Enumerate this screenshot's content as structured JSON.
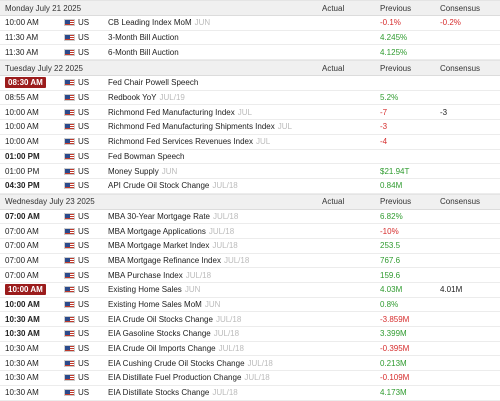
{
  "columns": {
    "actual": "Actual",
    "previous": "Previous",
    "consensus": "Consensus"
  },
  "days": [
    {
      "date": "Monday July 21 2025",
      "events": [
        {
          "time": "10:00 AM",
          "time_style": "normal",
          "country": "US",
          "event": "CB Leading Index MoM",
          "period": "JUN",
          "actual": "",
          "previous": "-0.1%",
          "previous_color": "red",
          "consensus": "-0.2%",
          "consensus_color": "red"
        },
        {
          "time": "11:30 AM",
          "time_style": "normal",
          "country": "US",
          "event": "3-Month Bill Auction",
          "period": "",
          "actual": "",
          "previous": "4.245%",
          "previous_color": "green",
          "consensus": "",
          "consensus_color": "normal"
        },
        {
          "time": "11:30 AM",
          "time_style": "normal",
          "country": "US",
          "event": "6-Month Bill Auction",
          "period": "",
          "actual": "",
          "previous": "4.125%",
          "previous_color": "green",
          "consensus": "",
          "consensus_color": "normal"
        }
      ]
    },
    {
      "date": "Tuesday July 22 2025",
      "events": [
        {
          "time": "08:30 AM",
          "time_style": "badge",
          "country": "US",
          "event": "Fed Chair Powell Speech",
          "period": "",
          "actual": "",
          "previous": "",
          "previous_color": "normal",
          "consensus": "",
          "consensus_color": "normal"
        },
        {
          "time": "08:55 AM",
          "time_style": "normal",
          "country": "US",
          "event": "Redbook YoY",
          "period": "JUL/19",
          "actual": "",
          "previous": "5.2%",
          "previous_color": "green",
          "consensus": "",
          "consensus_color": "normal"
        },
        {
          "time": "10:00 AM",
          "time_style": "normal",
          "country": "US",
          "event": "Richmond Fed Manufacturing Index",
          "period": "JUL",
          "actual": "",
          "previous": "-7",
          "previous_color": "red",
          "consensus": "-3",
          "consensus_color": "normal"
        },
        {
          "time": "10:00 AM",
          "time_style": "normal",
          "country": "US",
          "event": "Richmond Fed Manufacturing Shipments Index",
          "period": "JUL",
          "actual": "",
          "previous": "-3",
          "previous_color": "red",
          "consensus": "",
          "consensus_color": "normal"
        },
        {
          "time": "10:00 AM",
          "time_style": "normal",
          "country": "US",
          "event": "Richmond Fed Services Revenues Index",
          "period": "JUL",
          "actual": "",
          "previous": "-4",
          "previous_color": "red",
          "consensus": "",
          "consensus_color": "normal"
        },
        {
          "time": "01:00 PM",
          "time_style": "bold",
          "country": "US",
          "event": "Fed Bowman Speech",
          "period": "",
          "actual": "",
          "previous": "",
          "previous_color": "normal",
          "consensus": "",
          "consensus_color": "normal"
        },
        {
          "time": "01:00 PM",
          "time_style": "normal",
          "country": "US",
          "event": "Money Supply",
          "period": "JUN",
          "actual": "",
          "previous": "$21.94T",
          "previous_color": "green",
          "consensus": "",
          "consensus_color": "normal"
        },
        {
          "time": "04:30 PM",
          "time_style": "bold",
          "country": "US",
          "event": "API Crude Oil Stock Change",
          "period": "JUL/18",
          "actual": "",
          "previous": "0.84M",
          "previous_color": "green",
          "consensus": "",
          "consensus_color": "normal"
        }
      ]
    },
    {
      "date": "Wednesday July 23 2025",
      "events": [
        {
          "time": "07:00 AM",
          "time_style": "bold",
          "country": "US",
          "event": "MBA 30-Year Mortgage Rate",
          "period": "JUL/18",
          "actual": "",
          "previous": "6.82%",
          "previous_color": "green",
          "consensus": "",
          "consensus_color": "normal"
        },
        {
          "time": "07:00 AM",
          "time_style": "normal",
          "country": "US",
          "event": "MBA Mortgage Applications",
          "period": "JUL/18",
          "actual": "",
          "previous": "-10%",
          "previous_color": "red",
          "consensus": "",
          "consensus_color": "normal"
        },
        {
          "time": "07:00 AM",
          "time_style": "normal",
          "country": "US",
          "event": "MBA Mortgage Market Index",
          "period": "JUL/18",
          "actual": "",
          "previous": "253.5",
          "previous_color": "green",
          "consensus": "",
          "consensus_color": "normal"
        },
        {
          "time": "07:00 AM",
          "time_style": "normal",
          "country": "US",
          "event": "MBA Mortgage Refinance Index",
          "period": "JUL/18",
          "actual": "",
          "previous": "767.6",
          "previous_color": "green",
          "consensus": "",
          "consensus_color": "normal"
        },
        {
          "time": "07:00 AM",
          "time_style": "normal",
          "country": "US",
          "event": "MBA Purchase Index",
          "period": "JUL/18",
          "actual": "",
          "previous": "159.6",
          "previous_color": "green",
          "consensus": "",
          "consensus_color": "normal"
        },
        {
          "time": "10:00 AM",
          "time_style": "badge",
          "country": "US",
          "event": "Existing Home Sales",
          "period": "JUN",
          "actual": "",
          "previous": "4.03M",
          "previous_color": "green",
          "consensus": "4.01M",
          "consensus_color": "normal"
        },
        {
          "time": "10:00 AM",
          "time_style": "bold",
          "country": "US",
          "event": "Existing Home Sales MoM",
          "period": "JUN",
          "actual": "",
          "previous": "0.8%",
          "previous_color": "green",
          "consensus": "",
          "consensus_color": "normal"
        },
        {
          "time": "10:30 AM",
          "time_style": "bold",
          "country": "US",
          "event": "EIA Crude Oil Stocks Change",
          "period": "JUL/18",
          "actual": "",
          "previous": "-3.859M",
          "previous_color": "red",
          "consensus": "",
          "consensus_color": "normal"
        },
        {
          "time": "10:30 AM",
          "time_style": "bold",
          "country": "US",
          "event": "EIA Gasoline Stocks Change",
          "period": "JUL/18",
          "actual": "",
          "previous": "3.399M",
          "previous_color": "green",
          "consensus": "",
          "consensus_color": "normal"
        },
        {
          "time": "10:30 AM",
          "time_style": "normal",
          "country": "US",
          "event": "EIA Crude Oil Imports Change",
          "period": "JUL/18",
          "actual": "",
          "previous": "-0.395M",
          "previous_color": "red",
          "consensus": "",
          "consensus_color": "normal"
        },
        {
          "time": "10:30 AM",
          "time_style": "normal",
          "country": "US",
          "event": "EIA Cushing Crude Oil Stocks Change",
          "period": "JUL/18",
          "actual": "",
          "previous": "0.213M",
          "previous_color": "green",
          "consensus": "",
          "consensus_color": "normal"
        },
        {
          "time": "10:30 AM",
          "time_style": "normal",
          "country": "US",
          "event": "EIA Distillate Fuel Production Change",
          "period": "JUL/18",
          "actual": "",
          "previous": "-0.109M",
          "previous_color": "red",
          "consensus": "",
          "consensus_color": "normal"
        },
        {
          "time": "10:30 AM",
          "time_style": "normal",
          "country": "US",
          "event": "EIA Distillate Stocks Change",
          "period": "JUL/18",
          "actual": "",
          "previous": "4.173M",
          "previous_color": "green",
          "consensus": "",
          "consensus_color": "normal"
        }
      ]
    }
  ]
}
